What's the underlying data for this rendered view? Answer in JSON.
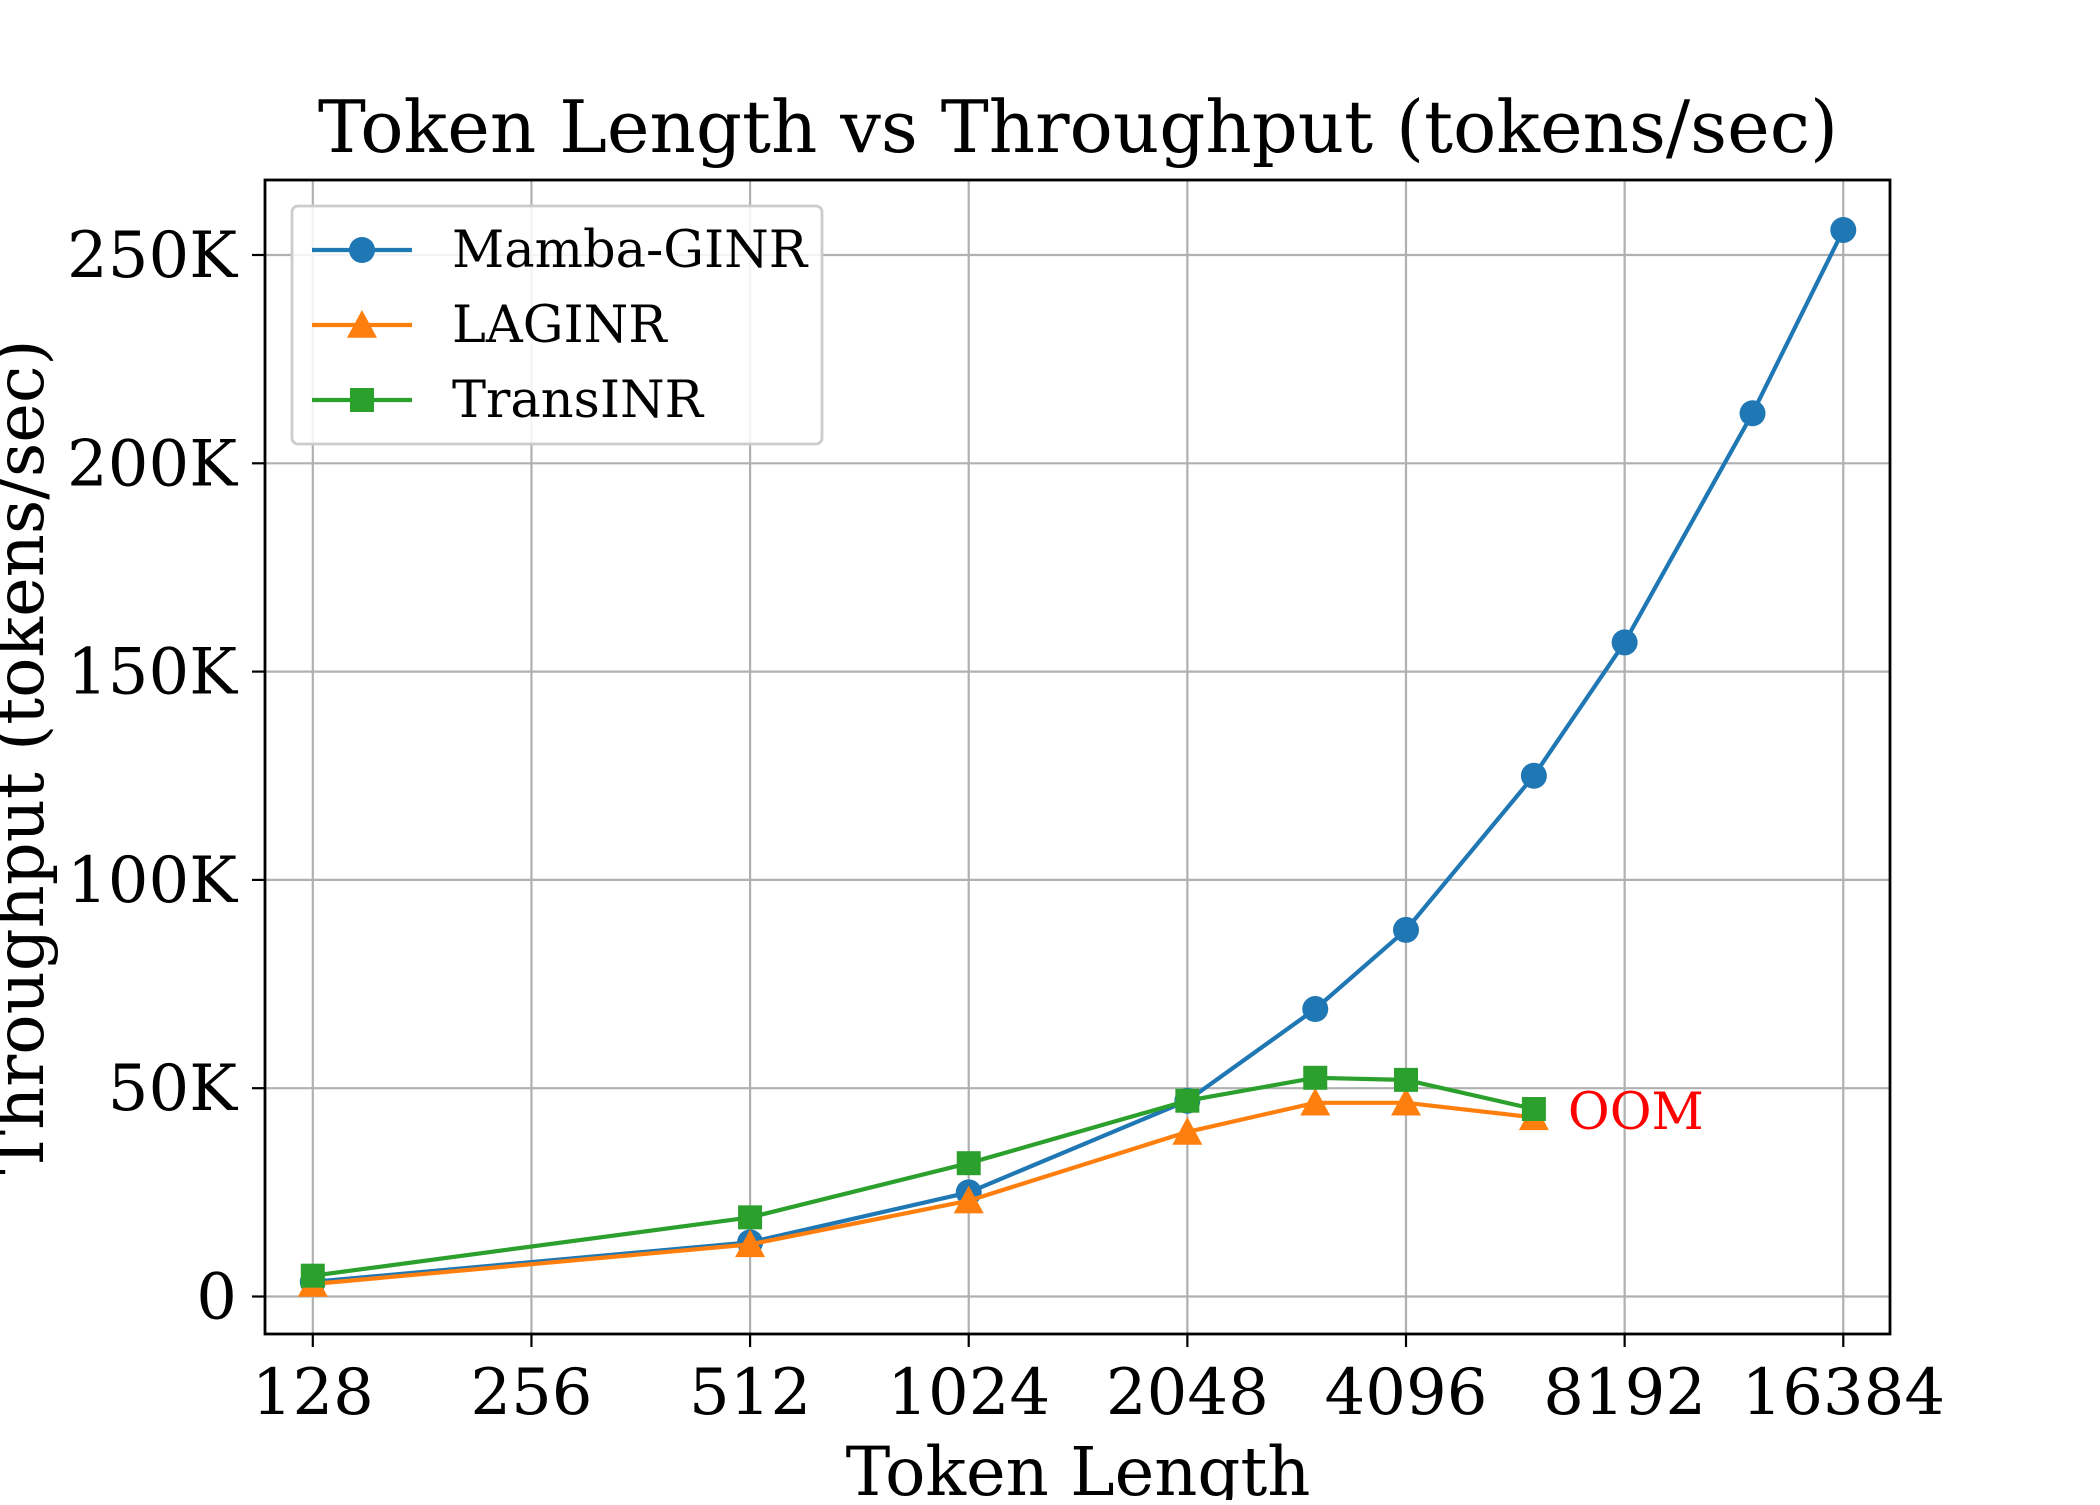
{
  "chart_data": {
    "type": "line",
    "title": "Token Length vs Throughput (tokens/sec)",
    "xlabel": "Token Length",
    "ylabel": "Throughput (tokens/sec)",
    "x_scale": "log2",
    "x_ticks": [
      128,
      256,
      512,
      1024,
      2048,
      4096,
      8192,
      16384
    ],
    "x_tick_labels": [
      "128",
      "256",
      "512",
      "1024",
      "2048",
      "4096",
      "8192",
      "16384"
    ],
    "xlim": [
      110,
      19000
    ],
    "y_ticks": [
      0,
      50000,
      100000,
      150000,
      200000,
      250000
    ],
    "y_tick_labels": [
      "0",
      "50K",
      "100K",
      "150K",
      "200K",
      "250K"
    ],
    "ylim": [
      -9000,
      268000
    ],
    "grid": true,
    "legend_position": "upper-left",
    "series": [
      {
        "name": "Mamba-GINR",
        "color": "#1f77b4",
        "marker": "circle",
        "x": [
          128,
          512,
          1024,
          2048,
          3072,
          4096,
          6144,
          8192,
          12288,
          16384
        ],
        "y": [
          3500,
          13000,
          25000,
          47000,
          69000,
          88000,
          125000,
          157000,
          212000,
          256000
        ]
      },
      {
        "name": "LAGINR",
        "color": "#ff7f0e",
        "marker": "triangle",
        "x": [
          128,
          512,
          1024,
          2048,
          3072,
          4096,
          6144
        ],
        "y": [
          3000,
          12500,
          23000,
          39500,
          46500,
          46500,
          43000
        ]
      },
      {
        "name": "TransINR",
        "color": "#2ca02c",
        "marker": "square",
        "x": [
          128,
          512,
          1024,
          2048,
          3072,
          4096,
          6144
        ],
        "y": [
          5000,
          19000,
          32000,
          47000,
          52500,
          52000,
          45000
        ]
      }
    ],
    "annotations": [
      {
        "text": "OOM",
        "x": 6144,
        "y": 44000,
        "color": "#ff0000"
      }
    ]
  }
}
